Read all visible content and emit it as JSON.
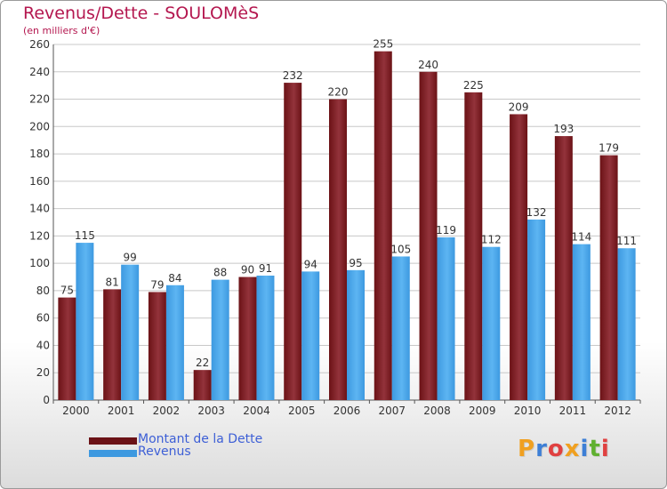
{
  "header": {
    "title": "Revenus/Dette - SOULOMèS",
    "subtitle": "(en milliers d'€)"
  },
  "colors": {
    "debt": "#6b1216",
    "debt_light": "#93333b",
    "revenue": "#3d99e0",
    "revenue_light": "#5db5f2",
    "title": "#b4174f",
    "legend_text": "#3d5fd6"
  },
  "legend": [
    {
      "label": "Montant de la Dette",
      "color": "#6b1216"
    },
    {
      "label": "Revenus",
      "color": "#3d99e0"
    }
  ],
  "logo": {
    "text": "Proxiti",
    "letter_colors": [
      "#f0a020",
      "#3d7fd6",
      "#e04040",
      "#f0a020",
      "#3d7fd6",
      "#60b030",
      "#e04040"
    ]
  },
  "chart_data": {
    "type": "bar",
    "categories": [
      "2000",
      "2001",
      "2002",
      "2003",
      "2004",
      "2005",
      "2006",
      "2007",
      "2008",
      "2009",
      "2010",
      "2011",
      "2012"
    ],
    "series": [
      {
        "name": "Montant de la Dette",
        "values": [
          75,
          81,
          79,
          22,
          90,
          232,
          220,
          255,
          240,
          225,
          209,
          193,
          179
        ]
      },
      {
        "name": "Revenus",
        "values": [
          115,
          99,
          84,
          88,
          91,
          94,
          95,
          105,
          119,
          112,
          132,
          114,
          111
        ]
      }
    ],
    "ylim": [
      0,
      260
    ],
    "yticks": [
      0,
      20,
      40,
      60,
      80,
      100,
      120,
      140,
      160,
      180,
      200,
      220,
      240,
      260
    ],
    "grid": true,
    "title": "Revenus/Dette - SOULOMèS",
    "ylabel": "(en milliers d'€)"
  }
}
